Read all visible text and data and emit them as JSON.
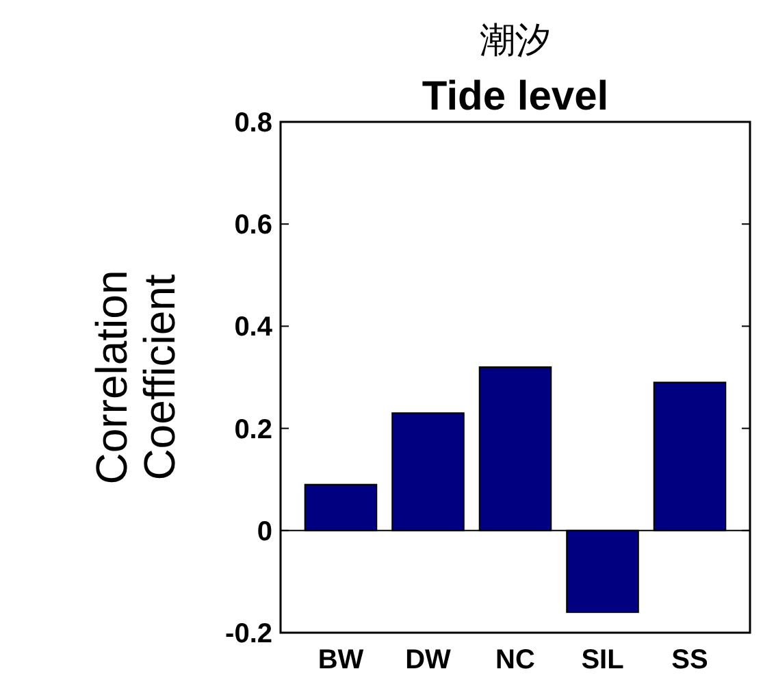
{
  "chart_data": {
    "type": "bar",
    "title": "潮汐",
    "subtitle": "Tide level",
    "ylabel": "Correlation\nCoefficient",
    "categories": [
      "BW",
      "DW",
      "NC",
      "SIL",
      "SS"
    ],
    "values": [
      0.09,
      0.23,
      0.32,
      -0.16,
      0.29
    ],
    "color": "#000080",
    "ylim": [
      -0.2,
      0.8
    ],
    "yticks": [
      -0.2,
      0,
      0.2,
      0.4,
      0.6,
      0.8
    ],
    "ref_lines": [
      {
        "axis": "y",
        "value": 0,
        "color": "#000000"
      }
    ]
  }
}
